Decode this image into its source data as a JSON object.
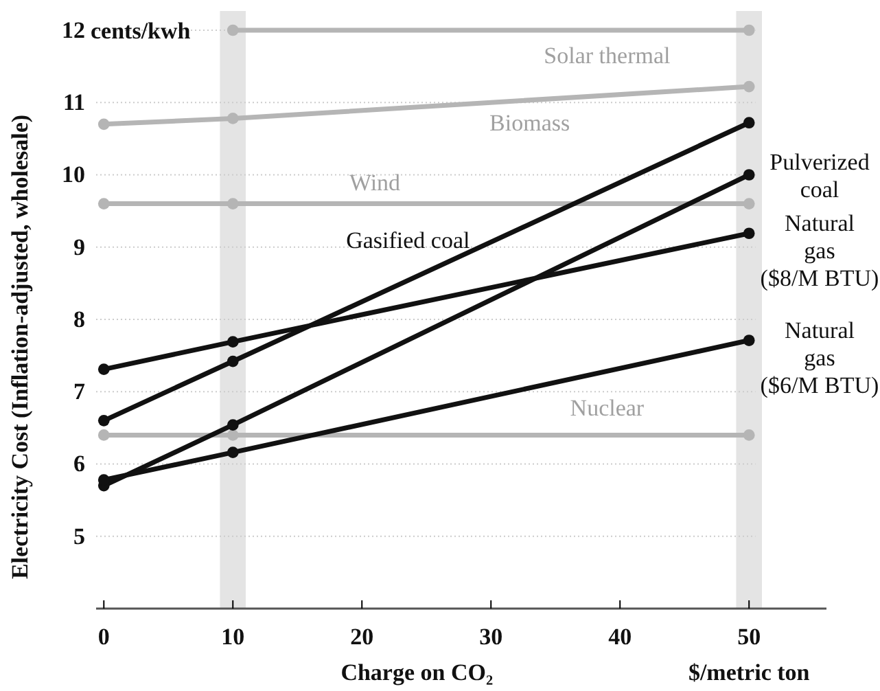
{
  "chart_data": {
    "type": "line",
    "xlabel": "Charge on CO₂",
    "ylabel": "Electricity Cost (Inflation-adjusted, wholesale)",
    "x": [
      0,
      10,
      50
    ],
    "series": [
      {
        "name": "Solar thermal",
        "color": "#b5b5b5",
        "values": [
          null,
          12,
          12
        ]
      },
      {
        "name": "Biomass",
        "color": "#b5b5b5",
        "values": [
          10.7,
          10.78,
          11.22
        ]
      },
      {
        "name": "Wind",
        "color": "#b5b5b5",
        "values": [
          9.6,
          9.6,
          9.6
        ]
      },
      {
        "name": "Nuclear",
        "color": "#b5b5b5",
        "values": [
          6.4,
          6.4,
          6.4
        ]
      },
      {
        "name": "Gasified coal",
        "color": "#111111",
        "values": [
          6.6,
          7.42,
          10.72
        ]
      },
      {
        "name": "Pulverized coal",
        "color": "#111111",
        "values": [
          5.7,
          6.54,
          10.0
        ]
      },
      {
        "name": "Natural gas ($8/M BTU)",
        "color": "#111111",
        "values": [
          7.31,
          7.69,
          9.19
        ]
      },
      {
        "name": "Natural gas ($6/M BTU)",
        "color": "#111111",
        "values": [
          5.78,
          6.16,
          7.71
        ]
      }
    ],
    "xlim": [
      -0.6,
      56
    ],
    "xticks": [
      0,
      10,
      20,
      30,
      40,
      50
    ],
    "ylim": [
      4,
      12
    ],
    "yticks": [
      5,
      6,
      7,
      8,
      9,
      10,
      11,
      12
    ],
    "bands": [
      {
        "axis": "x",
        "from": 9,
        "to": 11,
        "color": "#e4e4e4"
      },
      {
        "axis": "x",
        "from": 49,
        "to": 51,
        "color": "#e4e4e4"
      }
    ],
    "annotations": [
      "cents/kwh",
      "$/metric ton"
    ],
    "grid": "y",
    "marker": "circle",
    "line_style": "solid"
  }
}
